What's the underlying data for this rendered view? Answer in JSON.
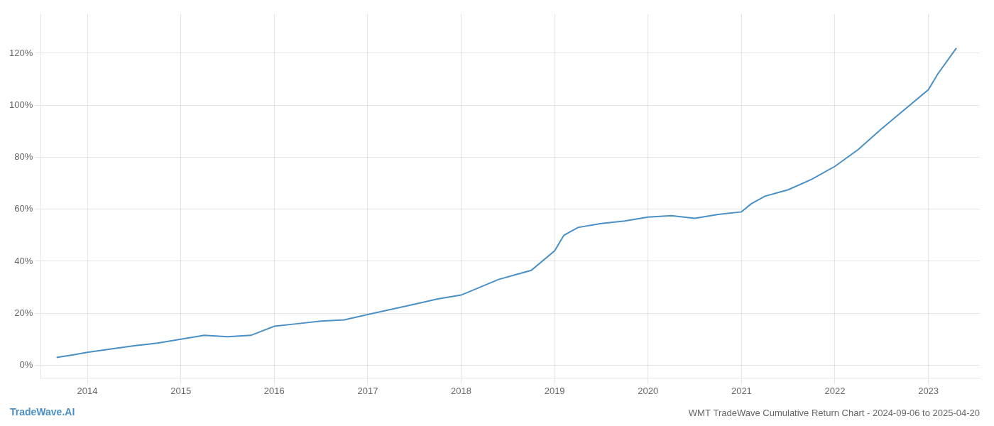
{
  "chart_data": {
    "type": "line",
    "title": "WMT TradeWave Cumulative Return Chart - 2024-09-06 to 2025-04-20",
    "annotations": [
      "TradeWave.AI"
    ],
    "x": [
      2013.67,
      2013.85,
      2014.0,
      2014.2,
      2014.5,
      2014.75,
      2015.0,
      2015.25,
      2015.5,
      2015.75,
      2016.0,
      2016.25,
      2016.5,
      2016.75,
      2017.0,
      2017.25,
      2017.5,
      2017.75,
      2018.0,
      2018.2,
      2018.4,
      2018.6,
      2018.75,
      2019.0,
      2019.1,
      2019.25,
      2019.5,
      2019.75,
      2020.0,
      2020.25,
      2020.5,
      2020.75,
      2021.0,
      2021.1,
      2021.25,
      2021.5,
      2021.75,
      2022.0,
      2022.25,
      2022.5,
      2022.75,
      2023.0,
      2023.1,
      2023.3
    ],
    "values": [
      3.0,
      4.0,
      5.0,
      6.0,
      7.5,
      8.5,
      10.0,
      11.5,
      11.0,
      11.5,
      15.0,
      16.0,
      17.0,
      17.5,
      19.5,
      21.5,
      23.5,
      25.5,
      27.0,
      30.0,
      33.0,
      35.0,
      36.5,
      44.0,
      50.0,
      53.0,
      54.5,
      55.5,
      57.0,
      57.5,
      56.5,
      58.0,
      59.0,
      62.0,
      65.0,
      67.5,
      71.5,
      76.5,
      83.0,
      91.0,
      98.5,
      106.0,
      112.0,
      122.0
    ],
    "color": "#4a90c4",
    "xlim": [
      2013.5,
      2023.55
    ],
    "xticks": [
      2014,
      2015,
      2016,
      2017,
      2018,
      2019,
      2020,
      2021,
      2022,
      2023
    ],
    "ylim": [
      -5,
      135
    ],
    "yticks": [
      {
        "value": 0,
        "label": "0%"
      },
      {
        "value": 20,
        "label": "20%"
      },
      {
        "value": 40,
        "label": "40%"
      },
      {
        "value": 60,
        "label": "60%"
      },
      {
        "value": 80,
        "label": "80%"
      },
      {
        "value": 100,
        "label": "100%"
      },
      {
        "value": 120,
        "label": "120%"
      }
    ],
    "grid": true
  }
}
